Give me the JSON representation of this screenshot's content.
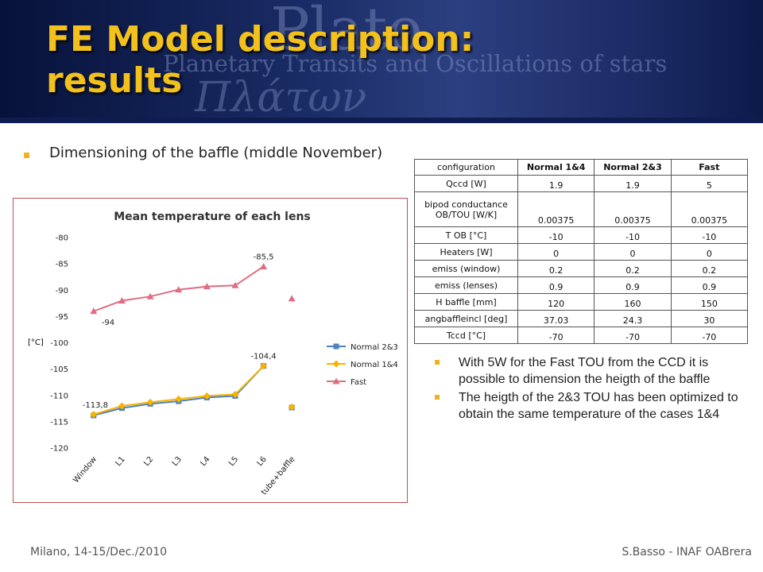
{
  "slide": {
    "title_line1": "FE Model description:",
    "title_line2": "results",
    "intro": "Dimensioning of the baffle (middle November)"
  },
  "banner": {
    "watermark_line1": "Plato",
    "watermark_line2": "Planetary Transits and Oscillations of stars",
    "watermark_line3": "Πλάτων"
  },
  "table": {
    "headers": [
      "configuration",
      "Normal 1&4",
      "Normal 2&3",
      "Fast"
    ],
    "rows": [
      {
        "param": "Qccd [W]",
        "n14": "1.9",
        "n23": "1.9",
        "fast": "5"
      },
      {
        "param": "bipod conductance OB/TOU [W/K]",
        "n14": "0.00375",
        "n23": "0.00375",
        "fast": "0.00375"
      },
      {
        "param": "T OB [°C]",
        "n14": "-10",
        "n23": "-10",
        "fast": "-10"
      },
      {
        "param": "Heaters [W]",
        "n14": "0",
        "n23": "0",
        "fast": "0"
      },
      {
        "param": "emiss (window)",
        "n14": "0.2",
        "n23": "0.2",
        "fast": "0.2"
      },
      {
        "param": "emiss (lenses)",
        "n14": "0.9",
        "n23": "0.9",
        "fast": "0.9"
      },
      {
        "param": "H baffle [mm]",
        "n14": "120",
        "n23": "160",
        "fast": "150"
      },
      {
        "param": "angbaffleincl [deg]",
        "n14": "37.03",
        "n23": "24.3",
        "fast": "30"
      },
      {
        "param": "Tccd [°C]",
        "n14": "-70",
        "n23": "-70",
        "fast": "-70"
      }
    ]
  },
  "notes": [
    "With 5W for the Fast TOU from the CCD it is possible to dimension the heigth of the baffle",
    "The heigth of the 2&3 TOU has been optimized to obtain the same temperature of the cases 1&4"
  ],
  "footer": {
    "left": "Milano, 14-15/Dec./2010",
    "right": "S.Basso - INAF OABrera"
  },
  "chart_data": {
    "type": "line",
    "title": "Mean temperature of each lens",
    "ylabel": "[°C]",
    "categories": [
      "Window",
      "L1",
      "L2",
      "L3",
      "L4",
      "L5",
      "L6",
      "tube+baffle"
    ],
    "ylim": [
      -120,
      -80
    ],
    "yticks": [
      -80,
      -85,
      -90,
      -95,
      -100,
      -105,
      -110,
      -115,
      -120
    ],
    "grid": false,
    "legend_position": "right",
    "series": [
      {
        "name": "Normal 2&3",
        "color": "#4f81bd",
        "marker": "square",
        "values": [
          -113.8,
          -112.4,
          -111.6,
          -111.1,
          -110.4,
          -110.1,
          -104.4,
          -112.3
        ]
      },
      {
        "name": "Normal 1&4",
        "color": "#f6b400",
        "marker": "diamond",
        "values": [
          -113.6,
          -112.0,
          -111.3,
          -110.7,
          -110.1,
          -109.8,
          -104.4,
          -112.2
        ]
      },
      {
        "name": "Fast",
        "color": "#e06c80",
        "marker": "triangle",
        "values": [
          -94.0,
          -92.0,
          -91.2,
          -89.9,
          -89.3,
          -89.1,
          -85.5,
          -91.6
        ]
      }
    ],
    "connected_points": 7,
    "data_labels": [
      {
        "text": "-94",
        "series": 2,
        "index": 0
      },
      {
        "text": "-85,5",
        "series": 2,
        "index": 6
      },
      {
        "text": "-104,4",
        "series": 0,
        "index": 6
      },
      {
        "text": "-113,8",
        "series": 0,
        "index": 0
      }
    ]
  }
}
